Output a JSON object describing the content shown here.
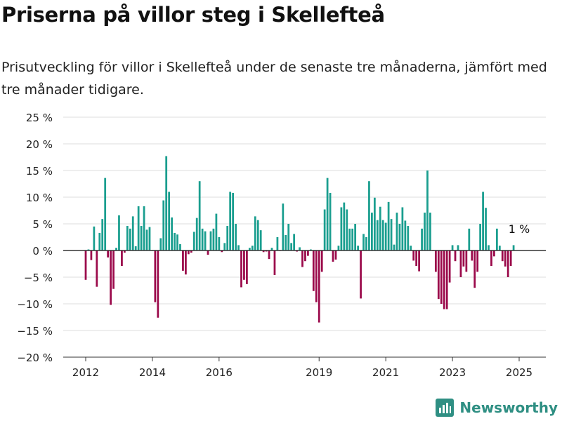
{
  "header": {
    "title": "Priserna på villor steg i Skellefteå",
    "subtitle": "Prisutveckling för villor i Skellefteå under de senaste tre månaderna, jämfört med tre månader tidigare."
  },
  "brand": {
    "name": "Newsworthy",
    "icon": "bar-chart-logo-icon",
    "color": "#2f8f83"
  },
  "chart_data": {
    "type": "bar",
    "yticks": [
      "25 %",
      "20 %",
      "15 %",
      "10 %",
      "5 %",
      "0 %",
      "−5 %",
      "−10 %",
      "−15 %",
      "−20 %"
    ],
    "ylim": [
      -20,
      25
    ],
    "xticks": [
      {
        "label": "2012",
        "year": 2012
      },
      {
        "label": "2014",
        "year": 2014
      },
      {
        "label": "2016",
        "year": 2016
      },
      {
        "label": "2019",
        "year": 2019
      },
      {
        "label": "2021",
        "year": 2021
      },
      {
        "label": "2023",
        "year": 2023
      },
      {
        "label": "2025",
        "year": 2025
      }
    ],
    "x_start": "2012-01",
    "x_end": "2025-02",
    "annotation": {
      "text": "1 %",
      "month": "2025-01"
    },
    "colors": {
      "positive": "#1a9e8f",
      "negative": "#9b0a4b",
      "zero_line": "#333333",
      "grid": "#dddddd"
    },
    "values": [
      -5.5,
      0.2,
      -1.8,
      4.5,
      -6.8,
      3.3,
      5.9,
      13.6,
      -1.3,
      -10.2,
      -7.2,
      0.5,
      6.6,
      -2.9,
      -0.4,
      4.6,
      4.1,
      6.4,
      0.8,
      8.3,
      4.6,
      8.3,
      3.9,
      4.4,
      0.1,
      -9.7,
      -12.6,
      2.3,
      9.4,
      17.7,
      11.0,
      6.2,
      3.3,
      3.0,
      1.2,
      -3.8,
      -4.5,
      -0.7,
      -0.4,
      3.5,
      6.1,
      13.0,
      4.1,
      3.6,
      -0.8,
      3.6,
      4.1,
      6.9,
      2.5,
      -0.3,
      1.4,
      4.6,
      11.0,
      10.8,
      5.0,
      1.0,
      -6.9,
      -5.5,
      -6.3,
      0.5,
      0.9,
      6.4,
      5.7,
      3.8,
      -0.3,
      -0.2,
      -1.6,
      0.5,
      -4.6,
      2.5,
      -0.1,
      8.8,
      2.9,
      5.0,
      1.4,
      3.1,
      -0.2,
      0.6,
      -3.1,
      -2.0,
      -1.0,
      0.2,
      -7.6,
      -9.7,
      -13.5,
      -4.0,
      7.7,
      13.6,
      10.8,
      -2.1,
      -1.7,
      0.9,
      8.1,
      9.0,
      7.7,
      4.1,
      4.1,
      5.0,
      0.9,
      -9.0,
      3.1,
      2.5,
      13.0,
      7.1,
      9.9,
      5.7,
      8.2,
      5.7,
      5.2,
      9.1,
      5.9,
      1.1,
      7.1,
      5.0,
      8.1,
      5.6,
      4.6,
      0.9,
      -1.9,
      -2.9,
      -3.9,
      4.1,
      7.1,
      15.0,
      7.1,
      -0.1,
      -4.0,
      -9.1,
      -10.0,
      -11.0,
      -11.0,
      -6.0,
      1.0,
      -2.0,
      1.0,
      -5.0,
      -3.0,
      -4.0,
      4.1,
      -1.9,
      -7.0,
      -4.0,
      5.0,
      11.0,
      8.0,
      1.0,
      -2.9,
      -1.1,
      4.1,
      0.9,
      -2.0,
      -3.0,
      -5.0,
      -2.9,
      1.0
    ]
  }
}
